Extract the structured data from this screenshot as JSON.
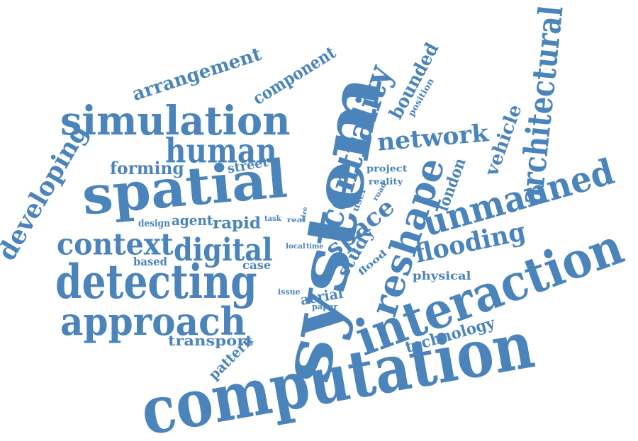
{
  "word_color": "#4a84bb",
  "words": [
    "computation",
    "system",
    "interaction",
    "spatial",
    "detecting",
    "simulation",
    "approach",
    "architectural",
    "reshape",
    "centrality",
    "unmanned",
    "human",
    "digital",
    "context",
    "developing",
    "flooding",
    "space",
    "network",
    "arrangement",
    "component",
    "bounded",
    "vehicle",
    "study",
    "technology",
    "london",
    "forming",
    "transport",
    "pattern",
    "street",
    "rapid",
    "aerial",
    "based",
    "case",
    "agent",
    "design",
    "physical",
    "project",
    "user",
    "reality",
    "flood",
    "issue",
    "paper",
    "position",
    "local",
    "time",
    "task",
    "real",
    "size",
    "road"
  ]
}
